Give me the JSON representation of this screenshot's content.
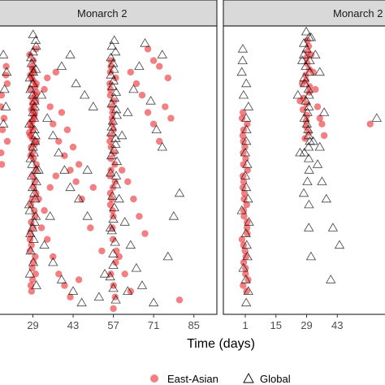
{
  "chart_data": {
    "type": "scatter",
    "xlabel": "Time (days)",
    "ylabel": "",
    "grid": false,
    "legend_position": "bottom",
    "series": [
      {
        "name": "East-Asian",
        "marker": "circle",
        "color": "#e8151b"
      },
      {
        "name": "Global",
        "marker": "open-triangle",
        "color": "#000000"
      }
    ],
    "panels": [
      {
        "strip": "Monarch 2",
        "xlim": [
          17,
          93
        ],
        "x_ticks": [
          29,
          43,
          57,
          71,
          85
        ],
        "ylim": [
          0,
          100
        ],
        "clusters": [
          {
            "x": 29,
            "series": "East-Asian",
            "y": [
              92,
              90,
              88,
              86,
              85,
              84,
              83,
              82,
              81,
              80,
              79,
              78,
              77,
              76,
              75,
              74,
              73,
              72,
              71,
              70,
              69,
              68,
              67,
              66,
              65,
              64,
              63,
              62,
              61,
              60,
              59,
              58,
              56,
              55,
              54,
              52,
              50,
              48,
              46,
              44,
              42,
              40,
              38,
              36,
              34,
              32,
              30,
              28,
              26,
              24,
              22,
              20,
              18,
              16,
              14,
              12,
              10,
              8
            ]
          },
          {
            "x": 29,
            "series": "Global",
            "y": [
              97,
              95,
              93,
              91,
              89,
              87,
              85,
              84,
              82,
              80,
              78,
              76,
              74,
              72,
              70,
              68,
              66,
              64,
              62,
              60,
              58,
              56,
              54,
              52,
              50,
              48,
              46,
              44,
              42,
              40,
              38,
              36,
              34,
              32,
              30,
              28,
              26,
              22,
              18,
              14,
              10
            ]
          },
          {
            "x": 57,
            "series": "East-Asian",
            "y": [
              88,
              86,
              84,
              82,
              80,
              78,
              76,
              74,
              72,
              70,
              68,
              66,
              64,
              62,
              60,
              58,
              56,
              54,
              52,
              50,
              48,
              46,
              44,
              42,
              40,
              38,
              36,
              34,
              30,
              26,
              22,
              18,
              14,
              10,
              6
            ]
          },
          {
            "x": 57,
            "series": "Global",
            "y": [
              95,
              93,
              91,
              89,
              87,
              85,
              83,
              81,
              79,
              77,
              75,
              73,
              71,
              69,
              67,
              65,
              63,
              61,
              59,
              57,
              55,
              53,
              49,
              45,
              41,
              37,
              33,
              29,
              25,
              21,
              17,
              13,
              9,
              5
            ]
          },
          {
            "x": 19,
            "series": "East-Asian",
            "y": [
              86,
              83,
              80,
              76,
              72,
              68,
              64,
              60,
              56,
              52
            ]
          },
          {
            "x": 19,
            "series": "Global",
            "y": [
              90,
              84,
              78,
              72,
              66
            ]
          }
        ],
        "scattered": {
          "East-Asian": [
            [
              33,
              78
            ],
            [
              35,
              72
            ],
            [
              36,
              66
            ],
            [
              38,
              60
            ],
            [
              40,
              55
            ],
            [
              42,
              50
            ],
            [
              44,
              46
            ],
            [
              46,
              40
            ],
            [
              34,
              82
            ],
            [
              37,
              84
            ],
            [
              39,
              70
            ],
            [
              41,
              64
            ],
            [
              43,
              58
            ],
            [
              45,
              52
            ],
            [
              32,
              30
            ],
            [
              34,
              26
            ],
            [
              36,
              20
            ],
            [
              38,
              14
            ],
            [
              40,
              10
            ],
            [
              42,
              6
            ],
            [
              31,
              40
            ],
            [
              33,
              36
            ],
            [
              35,
              44
            ],
            [
              37,
              48
            ],
            [
              63,
              84
            ],
            [
              65,
              80
            ],
            [
              67,
              76
            ],
            [
              69,
              70
            ],
            [
              71,
              66
            ],
            [
              73,
              60
            ],
            [
              75,
              72
            ],
            [
              77,
              68
            ],
            [
              60,
              50
            ],
            [
              62,
              46
            ],
            [
              64,
              40
            ],
            [
              66,
              34
            ],
            [
              68,
              28
            ],
            [
              59,
              20
            ],
            [
              61,
              14
            ],
            [
              63,
              8
            ],
            [
              80,
              5
            ],
            [
              71,
              88
            ],
            [
              69,
              92
            ],
            [
              73,
              86
            ],
            [
              76,
              82
            ],
            [
              49,
              30
            ],
            [
              53,
              22
            ],
            [
              45,
              12
            ],
            [
              57,
              2
            ],
            [
              50,
              44
            ]
          ],
          "Global": [
            [
              32,
              76
            ],
            [
              34,
              68
            ],
            [
              36,
              62
            ],
            [
              38,
              56
            ],
            [
              40,
              50
            ],
            [
              42,
              44
            ],
            [
              45,
              40
            ],
            [
              48,
              34
            ],
            [
              44,
              80
            ],
            [
              47,
              76
            ],
            [
              50,
              72
            ],
            [
              39,
              86
            ],
            [
              42,
              90
            ],
            [
              33,
              24
            ],
            [
              36,
              18
            ],
            [
              39,
              12
            ],
            [
              43,
              8
            ],
            [
              46,
              4
            ],
            [
              31,
              50
            ],
            [
              35,
              34
            ],
            [
              60,
              62
            ],
            [
              62,
              70
            ],
            [
              64,
              78
            ],
            [
              66,
              86
            ],
            [
              68,
              94
            ],
            [
              70,
              74
            ],
            [
              72,
              64
            ],
            [
              74,
              58
            ],
            [
              59,
              40
            ],
            [
              61,
              32
            ],
            [
              63,
              24
            ],
            [
              65,
              16
            ],
            [
              67,
              10
            ],
            [
              71,
              4
            ],
            [
              58,
              48
            ],
            [
              56,
              30
            ],
            [
              54,
              14
            ],
            [
              52,
              6
            ],
            [
              76,
              20
            ],
            [
              78,
              34
            ],
            [
              80,
              42
            ],
            [
              74,
              90
            ],
            [
              62,
              8
            ],
            [
              48,
              50
            ]
          ]
        }
      },
      {
        "strip": "Monarch 2",
        "xlim": [
          -9,
          67
        ],
        "x_ticks": [
          1,
          15,
          29,
          43
        ],
        "ylim": [
          0,
          100
        ],
        "clusters": [
          {
            "x": 1,
            "series": "East-Asian",
            "y": [
              70,
              68,
              66,
              64,
              62,
              60,
              58,
              56,
              54,
              52,
              50,
              48,
              46,
              44,
              42,
              40,
              38,
              36,
              34,
              32,
              30,
              28,
              26,
              24,
              22,
              20,
              18,
              16,
              14,
              12,
              10,
              8
            ]
          },
          {
            "x": 1,
            "series": "Global",
            "y": [
              92,
              88,
              84,
              80,
              76,
              72,
              68,
              64,
              60,
              56,
              52,
              48,
              44,
              40,
              36,
              32,
              28,
              24,
              20,
              16,
              12,
              8,
              4
            ]
          },
          {
            "x": 29,
            "series": "East-Asian",
            "y": [
              95,
              93,
              91,
              89,
              87,
              85,
              83,
              81,
              79,
              77,
              75,
              73,
              71,
              69,
              67,
              65,
              63,
              61
            ]
          },
          {
            "x": 29,
            "series": "Global",
            "y": [
              98,
              96,
              94,
              92,
              90,
              88,
              86,
              84,
              82,
              80,
              78,
              76,
              74,
              72,
              70,
              68,
              66,
              64,
              62,
              60,
              58,
              56,
              54,
              50,
              46,
              42,
              38
            ]
          }
        ],
        "scattered": {
          "East-Asian": [
            [
              31,
              90
            ],
            [
              32,
              84
            ],
            [
              33,
              78
            ],
            [
              34,
              72
            ],
            [
              35,
              68
            ],
            [
              36,
              66
            ],
            [
              27,
              80
            ],
            [
              26,
              74
            ],
            [
              37,
              62
            ],
            [
              58,
              66
            ]
          ],
          "Global": [
            [
              31,
              96
            ],
            [
              33,
              90
            ],
            [
              35,
              84
            ],
            [
              27,
              88
            ],
            [
              25,
              76
            ],
            [
              32,
              60
            ],
            [
              34,
              52
            ],
            [
              36,
              46
            ],
            [
              26,
              56
            ],
            [
              30,
              30
            ],
            [
              38,
              40
            ],
            [
              41,
              30
            ],
            [
              44,
              24
            ],
            [
              40,
              12
            ],
            [
              31,
              20
            ],
            [
              37,
              70
            ],
            [
              35,
              58
            ],
            [
              61,
              68
            ]
          ]
        }
      }
    ]
  }
}
